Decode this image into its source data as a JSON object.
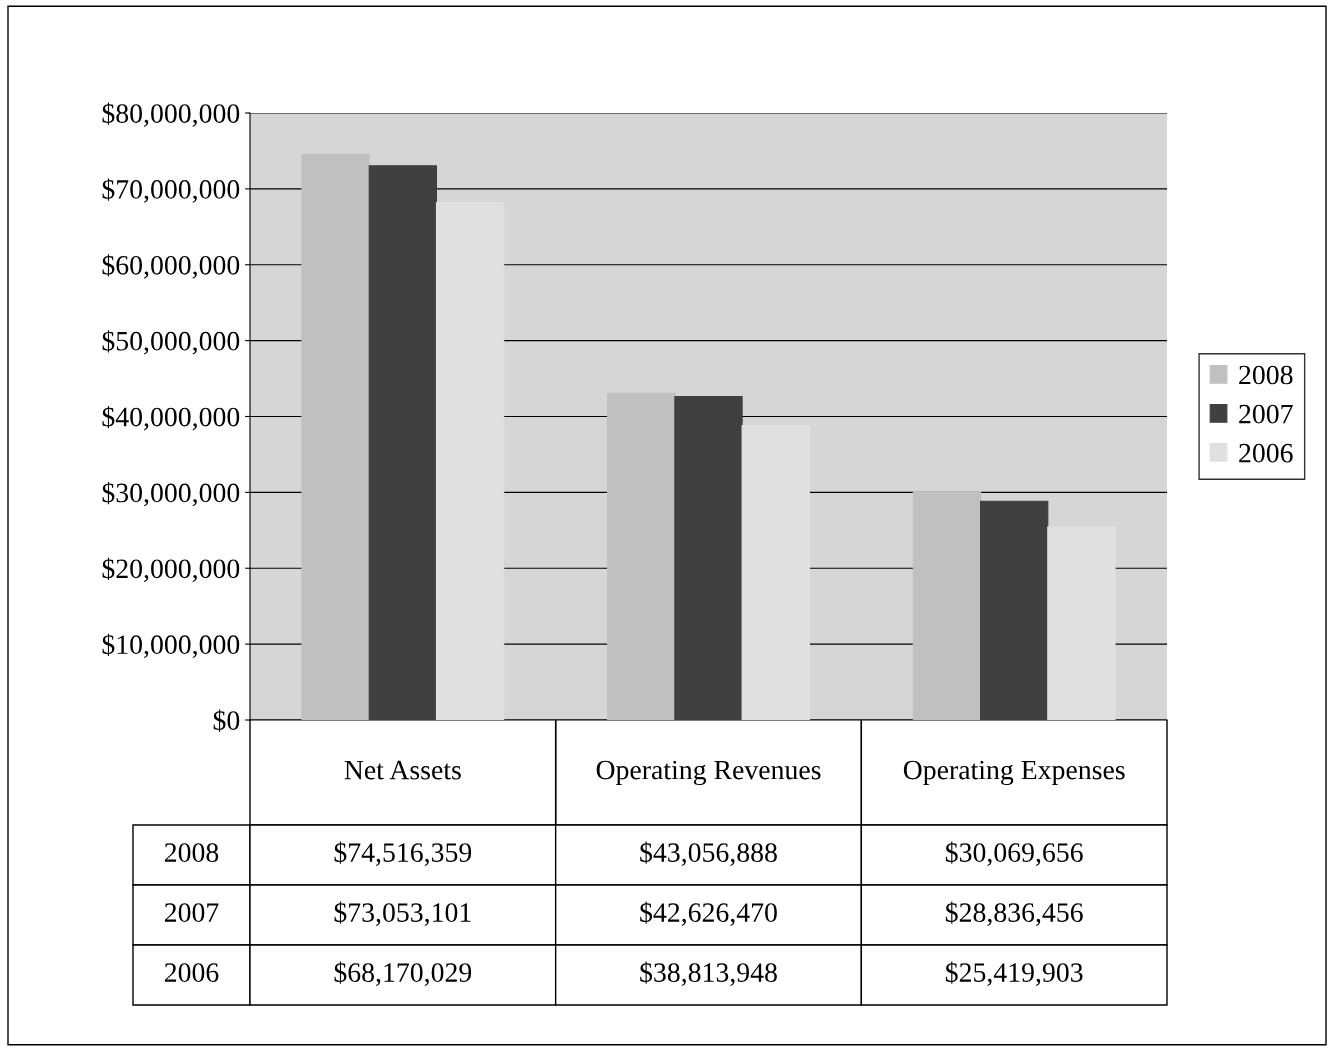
{
  "chart_data": {
    "type": "bar",
    "categories": [
      "Net Assets",
      "Operating Revenues",
      "Operating Expenses"
    ],
    "series": [
      {
        "name": "2008",
        "color": "#c0c0c0",
        "values": [
          74516359,
          43056888,
          30069656
        ],
        "value_labels": [
          "$74,516,359",
          "$43,056,888",
          "$30,069,656"
        ]
      },
      {
        "name": "2007",
        "color": "#404040",
        "values": [
          73053101,
          42626470,
          28836456
        ],
        "value_labels": [
          "$73,053,101",
          "$42,626,470",
          "$28,836,456"
        ]
      },
      {
        "name": "2006",
        "color": "#e0e0e0",
        "values": [
          68170029,
          38813948,
          25419903
        ],
        "value_labels": [
          "$68,170,029",
          "$38,813,948",
          "$25,419,903"
        ]
      }
    ],
    "ylim": [
      0,
      80000000
    ],
    "yticks": [
      {
        "value": 0,
        "label": "$0"
      },
      {
        "value": 10000000,
        "label": "$10,000,000"
      },
      {
        "value": 20000000,
        "label": "$20,000,000"
      },
      {
        "value": 30000000,
        "label": "$30,000,000"
      },
      {
        "value": 40000000,
        "label": "$40,000,000"
      },
      {
        "value": 50000000,
        "label": "$50,000,000"
      },
      {
        "value": 60000000,
        "label": "$60,000,000"
      },
      {
        "value": 70000000,
        "label": "$70,000,000"
      },
      {
        "value": 80000000,
        "label": "$80,000,000"
      }
    ],
    "grid": "y",
    "legend": "right"
  }
}
